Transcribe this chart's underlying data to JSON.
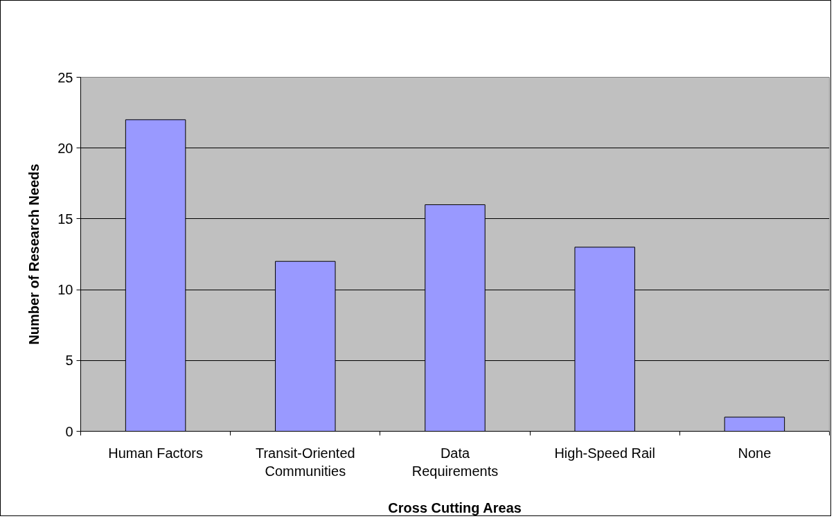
{
  "chart_data": {
    "type": "bar",
    "xlabel": "Cross Cutting Areas",
    "ylabel": "Number of Research Needs",
    "categories": [
      "Human Factors",
      "Transit-Oriented Communities",
      "Data Requirements",
      "High-Speed Rail",
      "None"
    ],
    "values": [
      22,
      12,
      16,
      13,
      1
    ],
    "color": "#9999ff",
    "ylim": [
      0,
      25
    ],
    "yticks": [
      0,
      5,
      10,
      15,
      20,
      25
    ],
    "grid": "y"
  }
}
